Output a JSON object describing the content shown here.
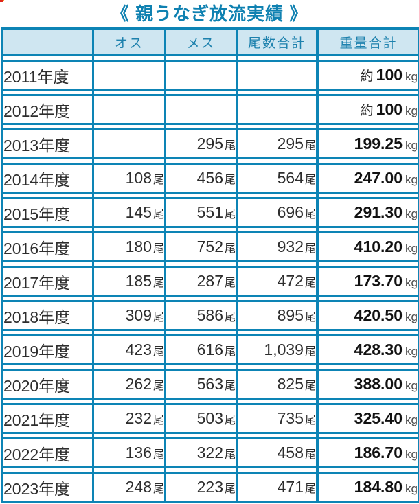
{
  "colors": {
    "border_teal": "#0d84b5",
    "header_bg": "#cfe6f1",
    "header_text": "#1d81ad",
    "year_col_bg": "#f0f0e1",
    "title_text": "#0f81b1",
    "body_text": "#2d2d2d",
    "weight_text": "#111111",
    "kg_text": "#4d4d4d",
    "artifact_red": "#e0251c"
  },
  "chart_data": {
    "type": "table",
    "title": "《 親うなぎ放流実績 》",
    "columns": [
      "",
      "オス",
      "メス",
      "尾数合計",
      "重量合計"
    ],
    "unit_count": "尾",
    "unit_weight": "kg",
    "approx_prefix": "約",
    "rows": [
      {
        "year": "2011年度",
        "male": null,
        "female": null,
        "total": null,
        "weight": "100",
        "approx": true
      },
      {
        "year": "2012年度",
        "male": null,
        "female": null,
        "total": null,
        "weight": "100",
        "approx": true
      },
      {
        "year": "2013年度",
        "male": null,
        "female": "295",
        "total": "295",
        "weight": "199.25",
        "approx": false
      },
      {
        "year": "2014年度",
        "male": "108",
        "female": "456",
        "total": "564",
        "weight": "247.00",
        "approx": false
      },
      {
        "year": "2015年度",
        "male": "145",
        "female": "551",
        "total": "696",
        "weight": "291.30",
        "approx": false
      },
      {
        "year": "2016年度",
        "male": "180",
        "female": "752",
        "total": "932",
        "weight": "410.20",
        "approx": false
      },
      {
        "year": "2017年度",
        "male": "185",
        "female": "287",
        "total": "472",
        "weight": "173.70",
        "approx": false
      },
      {
        "year": "2018年度",
        "male": "309",
        "female": "586",
        "total": "895",
        "weight": "420.50",
        "approx": false
      },
      {
        "year": "2019年度",
        "male": "423",
        "female": "616",
        "total": "1,039",
        "weight": "428.30",
        "approx": false
      },
      {
        "year": "2020年度",
        "male": "262",
        "female": "563",
        "total": "825",
        "weight": "388.00",
        "approx": false
      },
      {
        "year": "2021年度",
        "male": "232",
        "female": "503",
        "total": "735",
        "weight": "325.40",
        "approx": false
      },
      {
        "year": "2022年度",
        "male": "136",
        "female": "322",
        "total": "458",
        "weight": "186.70",
        "approx": false
      },
      {
        "year": "2023年度",
        "male": "248",
        "female": "223",
        "total": "471",
        "weight": "184.80",
        "approx": false
      }
    ]
  }
}
